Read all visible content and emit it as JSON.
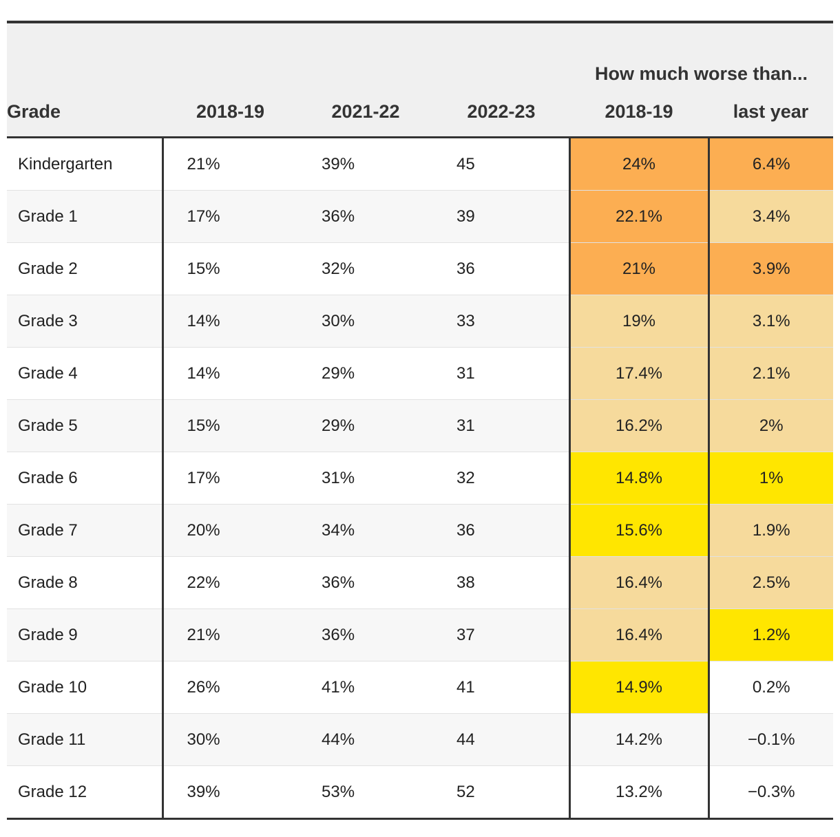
{
  "chart_data": {
    "type": "table",
    "group_header": "How much worse than...",
    "columns": [
      "Grade",
      "2018-19",
      "2021-22",
      "2022-23",
      "2018-19",
      "last year"
    ],
    "rows": [
      {
        "grade": "Kindergarten",
        "y2018": "21%",
        "y2021": "39%",
        "y2022": "45",
        "vs2018": "24%",
        "vs2018_value": 24.0,
        "vslast": "6.4%",
        "vslast_value": 6.4
      },
      {
        "grade": "Grade 1",
        "y2018": "17%",
        "y2021": "36%",
        "y2022": "39",
        "vs2018": "22.1%",
        "vs2018_value": 22.1,
        "vslast": "3.4%",
        "vslast_value": 3.4
      },
      {
        "grade": "Grade 2",
        "y2018": "15%",
        "y2021": "32%",
        "y2022": "36",
        "vs2018": "21%",
        "vs2018_value": 21.0,
        "vslast": "3.9%",
        "vslast_value": 3.9
      },
      {
        "grade": "Grade 3",
        "y2018": "14%",
        "y2021": "30%",
        "y2022": "33",
        "vs2018": "19%",
        "vs2018_value": 19.0,
        "vslast": "3.1%",
        "vslast_value": 3.1
      },
      {
        "grade": "Grade 4",
        "y2018": "14%",
        "y2021": "29%",
        "y2022": "31",
        "vs2018": "17.4%",
        "vs2018_value": 17.4,
        "vslast": "2.1%",
        "vslast_value": 2.1
      },
      {
        "grade": "Grade 5",
        "y2018": "15%",
        "y2021": "29%",
        "y2022": "31",
        "vs2018": "16.2%",
        "vs2018_value": 16.2,
        "vslast": "2%",
        "vslast_value": 2.0
      },
      {
        "grade": "Grade 6",
        "y2018": "17%",
        "y2021": "31%",
        "y2022": "32",
        "vs2018": "14.8%",
        "vs2018_value": 14.8,
        "vslast": "1%",
        "vslast_value": 1.0
      },
      {
        "grade": "Grade 7",
        "y2018": "20%",
        "y2021": "34%",
        "y2022": "36",
        "vs2018": "15.6%",
        "vs2018_value": 15.6,
        "vslast": "1.9%",
        "vslast_value": 1.9
      },
      {
        "grade": "Grade 8",
        "y2018": "22%",
        "y2021": "36%",
        "y2022": "38",
        "vs2018": "16.4%",
        "vs2018_value": 16.4,
        "vslast": "2.5%",
        "vslast_value": 2.5
      },
      {
        "grade": "Grade 9",
        "y2018": "21%",
        "y2021": "36%",
        "y2022": "37",
        "vs2018": "16.4%",
        "vs2018_value": 16.4,
        "vslast": "1.2%",
        "vslast_value": 1.2
      },
      {
        "grade": "Grade 10",
        "y2018": "26%",
        "y2021": "41%",
        "y2022": "41",
        "vs2018": "14.9%",
        "vs2018_value": 14.9,
        "vslast": "0.2%",
        "vslast_value": 0.2
      },
      {
        "grade": "Grade 11",
        "y2018": "30%",
        "y2021": "44%",
        "y2022": "44",
        "vs2018": "14.2%",
        "vs2018_value": 14.2,
        "vslast": "−0.1%",
        "vslast_value": -0.1
      },
      {
        "grade": "Grade 12",
        "y2018": "39%",
        "y2021": "53%",
        "y2022": "52",
        "vs2018": "13.2%",
        "vs2018_value": 13.2,
        "vslast": "−0.3%",
        "vslast_value": -0.3
      }
    ],
    "color_scale": {
      "vs2018": [
        {
          "min": 20.0,
          "color": "#fcae52"
        },
        {
          "min": 15.95,
          "color": "#f6da9c"
        },
        {
          "min": 14.3,
          "color": "#ffe600"
        },
        {
          "min": -1000,
          "color": ""
        }
      ],
      "vslast": [
        {
          "min": 3.5,
          "color": "#fcae52"
        },
        {
          "min": 1.5,
          "color": "#f6da9c"
        },
        {
          "min": 0.5,
          "color": "#ffe600"
        },
        {
          "min": -1000,
          "color": ""
        }
      ]
    }
  }
}
